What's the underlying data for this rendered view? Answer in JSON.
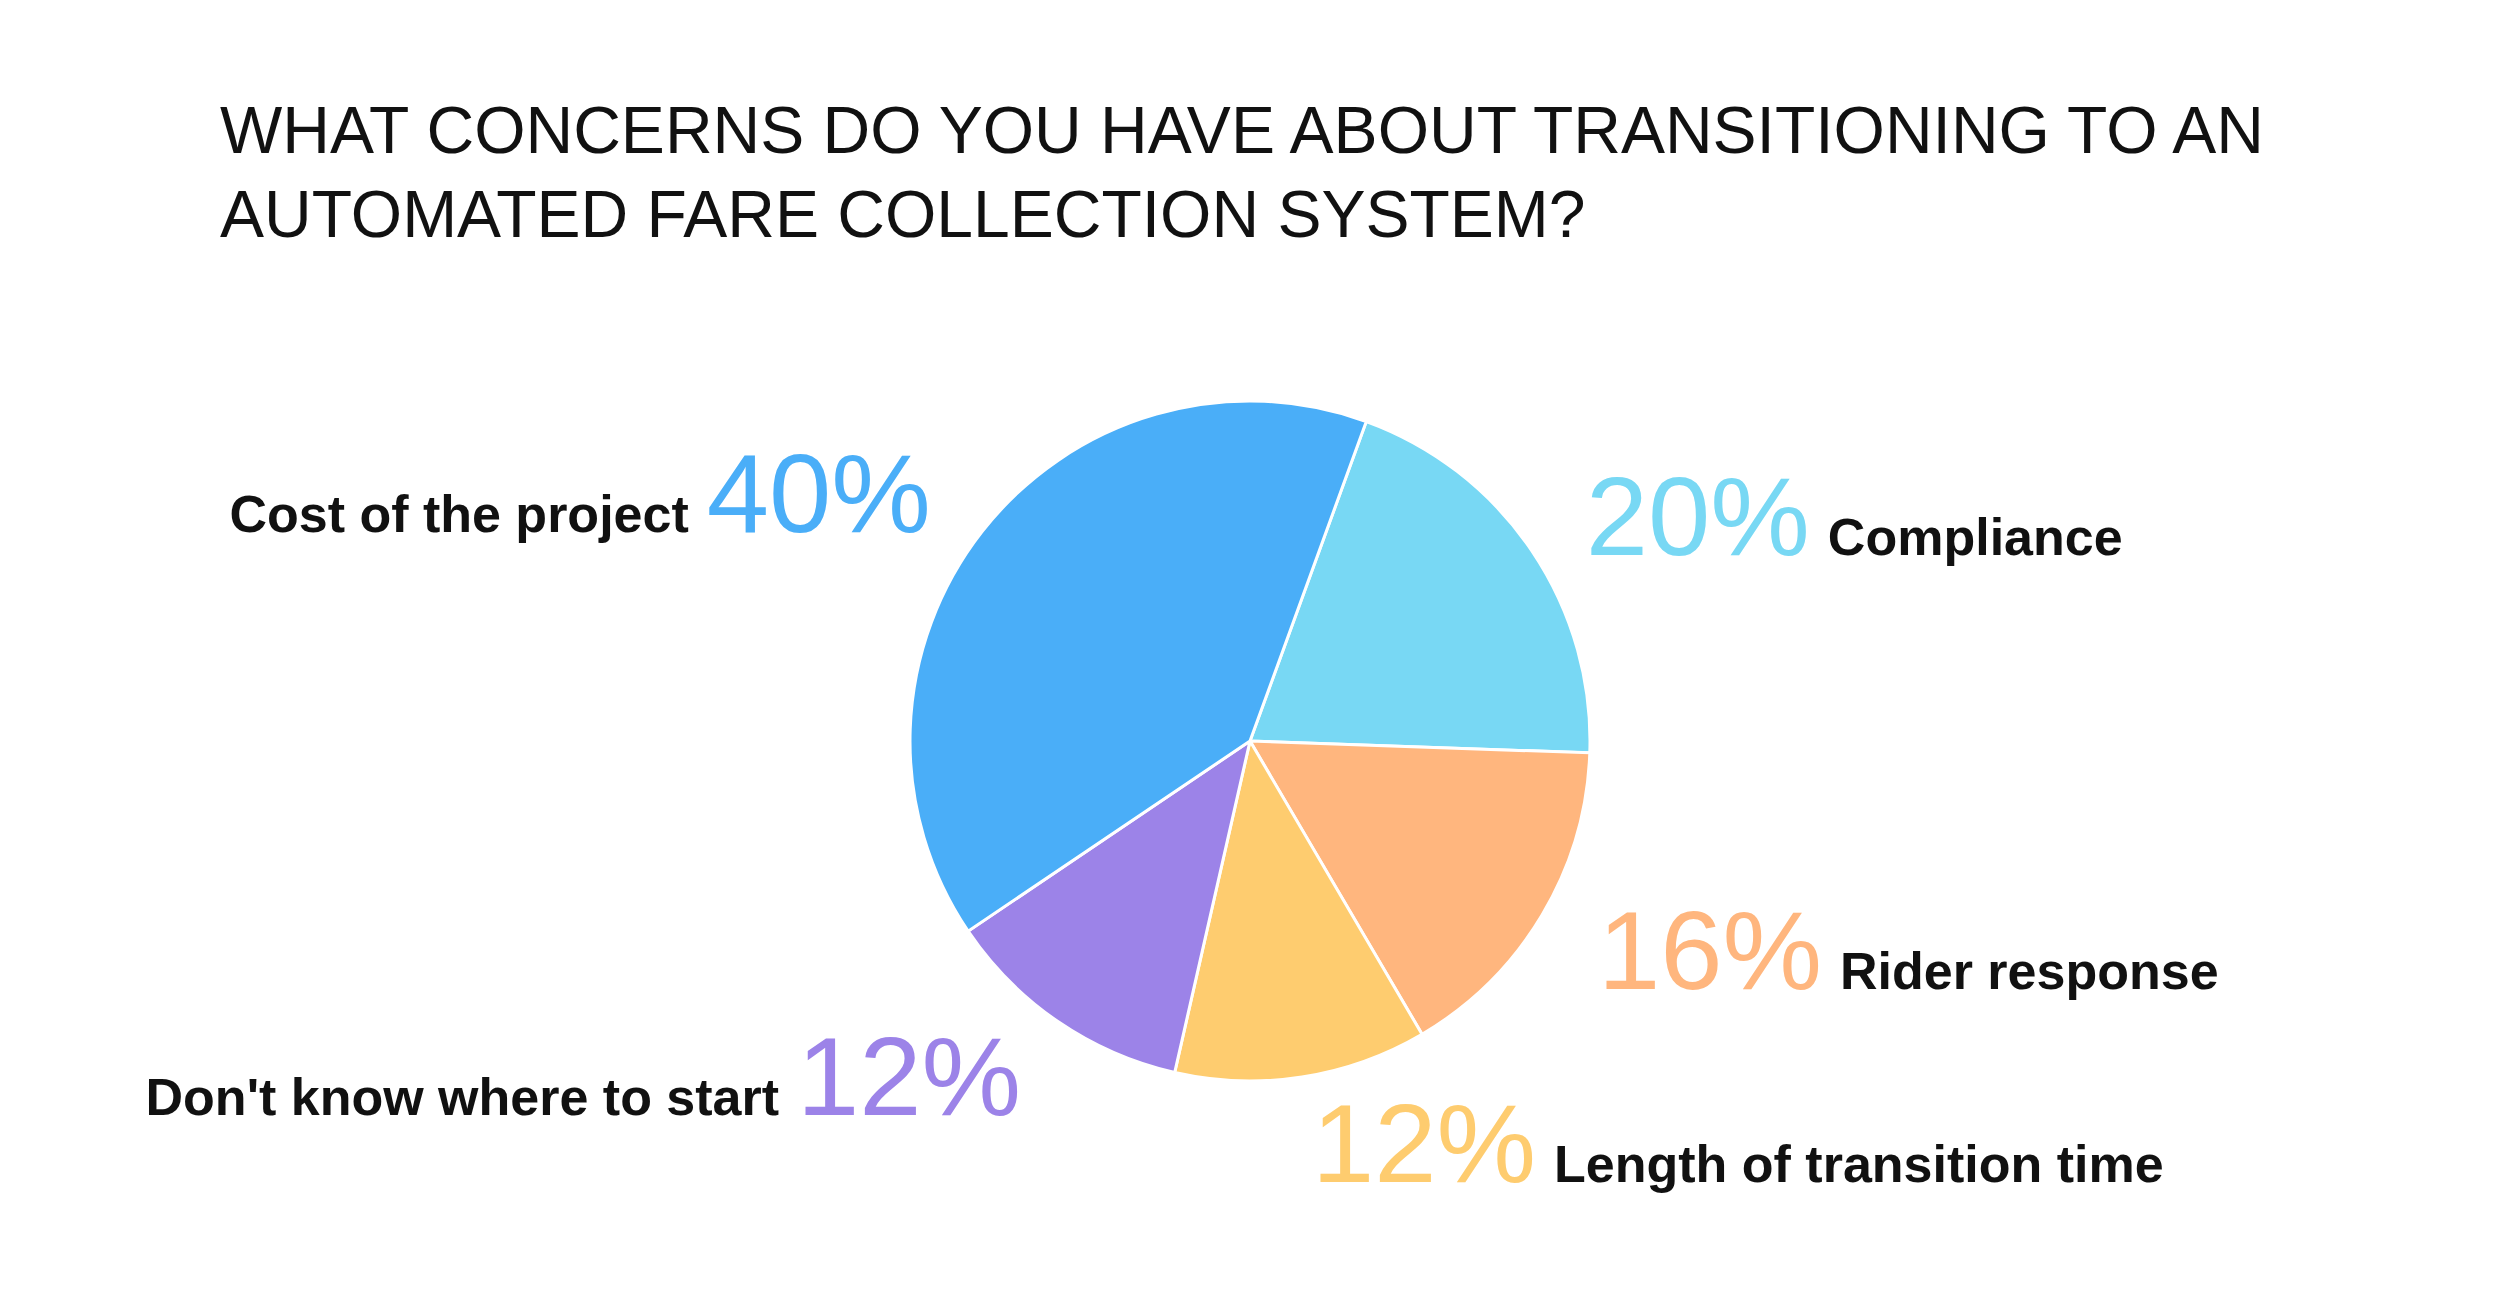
{
  "chart_data": {
    "type": "pie",
    "title": "WHAT CONCERNS DO YOU HAVE ABOUT TRANSITIONING TO AN AUTOMATED FARE COLLECTION SYSTEM?",
    "categories": [
      "Compliance",
      "Rider response",
      "Length of transition time",
      "Don't know where to start",
      "Cost of the project"
    ],
    "values": [
      20,
      16,
      12,
      12,
      40
    ],
    "colors": [
      "#78d8f4",
      "#ffb67e",
      "#fecc6f",
      "#9c83e8",
      "#4aaef8"
    ],
    "value_labels": [
      "20%",
      "16%",
      "12%",
      "12%",
      "40%"
    ]
  }
}
